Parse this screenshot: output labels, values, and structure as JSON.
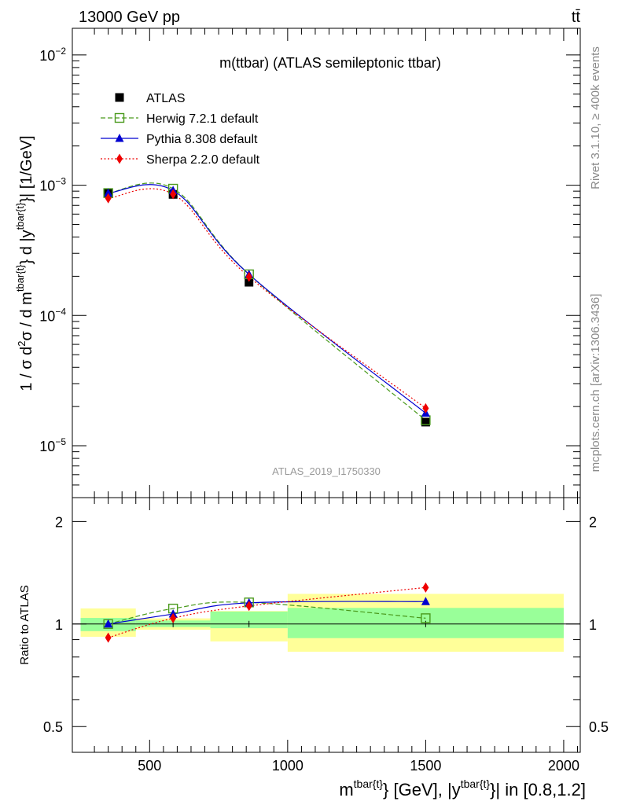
{
  "header": {
    "left": "13000 GeV pp",
    "right": "tt̄"
  },
  "side_labels": {
    "rivet": "Rivet 3.1.10, ≥ 400k events",
    "mcplots": "mcplots.cern.ch [arXiv:1306.3436]"
  },
  "chart_data": [
    {
      "type": "line",
      "title": "m(ttbar) (ATLAS semileptonic ttbar)",
      "watermark": "ATLAS_2019_I1750330",
      "ylabel": "1 / σ d²σ / d m^{tbar{t}} d |y^{tbar{t}}| [1/GeV]",
      "yscale": "log",
      "xlim": [
        220,
        2060
      ],
      "ylim": [
        4e-06,
        0.016
      ],
      "ytick_labels": [
        {
          "value": 1e-05,
          "mantissa": "10",
          "exp": "−5"
        },
        {
          "value": 0.0001,
          "mantissa": "10",
          "exp": "−4"
        },
        {
          "value": 0.001,
          "mantissa": "10",
          "exp": "−3"
        },
        {
          "value": 0.01,
          "mantissa": "10",
          "exp": "−2"
        }
      ],
      "legend_position": "top-left",
      "bins": [
        {
          "low": 250,
          "high": 450,
          "x": 350
        },
        {
          "low": 450,
          "high": 720,
          "x": 585
        },
        {
          "low": 720,
          "high": 1000,
          "x": 860
        },
        {
          "low": 1000,
          "high": 2000,
          "x": 1500
        }
      ],
      "series": [
        {
          "name": "ATLAS",
          "style": "data",
          "color": "#000000",
          "marker": "square-filled",
          "x": [
            350,
            585,
            860,
            1500
          ],
          "values": [
            0.00087,
            0.00085,
            0.00018,
            1.52e-05
          ]
        },
        {
          "name": "Herwig 7.2.1 default",
          "style": "dashed",
          "color": "#4a9a1c",
          "marker": "square-open",
          "x": [
            350,
            585,
            860,
            1500
          ],
          "values": [
            0.00087,
            0.00094,
            0.000207,
            1.57e-05
          ]
        },
        {
          "name": "Pythia 8.308 default",
          "style": "solid",
          "color": "#0000d0",
          "marker": "triangle-filled",
          "x": [
            350,
            585,
            860,
            1500
          ],
          "values": [
            0.00087,
            0.00091,
            0.000207,
            1.78e-05
          ]
        },
        {
          "name": "Sherpa 2.2.0 default",
          "style": "dotted",
          "color": "#ee0000",
          "marker": "diamond-filled",
          "x": [
            350,
            585,
            860,
            1500
          ],
          "values": [
            0.000793,
            0.000853,
            0.000198,
            1.94e-05
          ]
        }
      ]
    },
    {
      "type": "line",
      "ylabel": "Ratio to ATLAS",
      "xlabel": "m^{tbar{t}} [GeV], |y^{tbar{t}}| in [0.8,1.2]",
      "xlim": [
        220,
        2060
      ],
      "ylim": [
        0.42,
        2.35
      ],
      "xtick_labels": [
        "500",
        "1000",
        "1500",
        "2000"
      ],
      "xtick_values": [
        500,
        1000,
        1500,
        2000
      ],
      "ytick_labels": [
        "0.5",
        "1",
        "2"
      ],
      "ytick_values": [
        0.5,
        1,
        2
      ],
      "reference_line": 1,
      "bands": {
        "inner_color": "#99ff99",
        "outer_color": "#ffff99",
        "bins": [
          {
            "low": 250,
            "high": 450,
            "inner": [
              0.953,
              1.042
            ],
            "outer": [
              0.917,
              1.111
            ]
          },
          {
            "low": 450,
            "high": 720,
            "inner": [
              0.98,
              1.024
            ],
            "outer": [
              0.962,
              1.039
            ]
          },
          {
            "low": 720,
            "high": 1000,
            "inner": [
              0.972,
              1.088
            ],
            "outer": [
              0.889,
              1.092
            ]
          },
          {
            "low": 1000,
            "high": 2000,
            "inner": [
              0.909,
              1.115
            ],
            "outer": [
              0.829,
              1.226
            ]
          }
        ]
      },
      "series": [
        {
          "name": "Herwig 7.2.1 default",
          "x": [
            350,
            585,
            860,
            1500
          ],
          "values": [
            1.0,
            1.11,
            1.157,
            1.04
          ],
          "errors": [
            0,
            0,
            0,
            0
          ]
        },
        {
          "name": "Pythia 8.308 default",
          "x": [
            350,
            585,
            860,
            1500
          ],
          "values": [
            1.0,
            1.07,
            1.154,
            1.164
          ],
          "errors": [
            0,
            0,
            0,
            0.018
          ]
        },
        {
          "name": "Sherpa 2.2.0 default",
          "x": [
            350,
            585,
            860,
            1500
          ],
          "values": [
            0.912,
            1.04,
            1.13,
            1.28
          ],
          "errors": [
            0.012,
            0.01,
            0.01,
            0.028
          ]
        }
      ]
    }
  ]
}
